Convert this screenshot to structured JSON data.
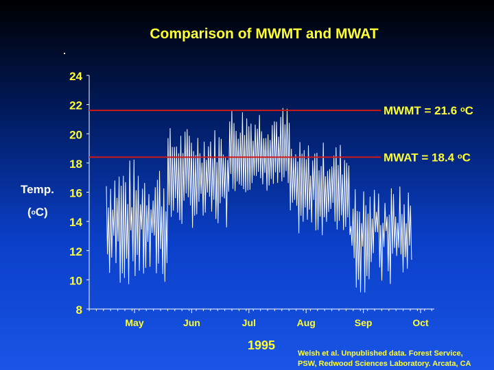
{
  "chart_data": {
    "type": "line",
    "title": "Comparison of MWMT and MWAT",
    "ylabel_line1": "Temp.",
    "ylabel_line2_pre": "(",
    "ylabel_line2_sup": "o",
    "ylabel_line2_post": "C)",
    "xlabel": "1995",
    "ylim": [
      8,
      24
    ],
    "yticks": [
      8,
      10,
      12,
      14,
      16,
      18,
      20,
      22,
      24
    ],
    "xtick_labels": [
      "May",
      "Jun",
      "Jul",
      "Aug",
      "Sep",
      "Oct"
    ],
    "reference_lines": [
      {
        "value": 21.6,
        "label_pre": "MWMT = 21.6 ",
        "label_sup": "o",
        "label_post": "C",
        "color": "#d01818"
      },
      {
        "value": 18.4,
        "label_pre": "MWAT = 18.4 ",
        "label_sup": "o",
        "label_post": "C",
        "color": "#d01818"
      }
    ],
    "series_color": "#ffffff",
    "daily_range": [
      {
        "month": "May",
        "min_range": [
          9.5,
          13.5
        ],
        "max_range": [
          14.5,
          18.4
        ]
      },
      {
        "month": "Jun",
        "min_range": [
          13.5,
          16.0
        ],
        "max_range": [
          18.0,
          20.5
        ]
      },
      {
        "month": "Jul",
        "min_range": [
          16.0,
          17.5
        ],
        "max_range": [
          19.5,
          22.0
        ]
      },
      {
        "month": "Aug",
        "min_range": [
          13.0,
          15.5
        ],
        "max_range": [
          17.0,
          19.5
        ]
      },
      {
        "month": "Sep",
        "min_range": [
          9.0,
          13.5
        ],
        "max_range": [
          13.5,
          16.5
        ]
      }
    ]
  },
  "credit_line1": "Welsh et al.  Unpublished data.  Forest Service,",
  "credit_line2": "PSW, Redwood Sciences Laboratory. Arcata, CA"
}
